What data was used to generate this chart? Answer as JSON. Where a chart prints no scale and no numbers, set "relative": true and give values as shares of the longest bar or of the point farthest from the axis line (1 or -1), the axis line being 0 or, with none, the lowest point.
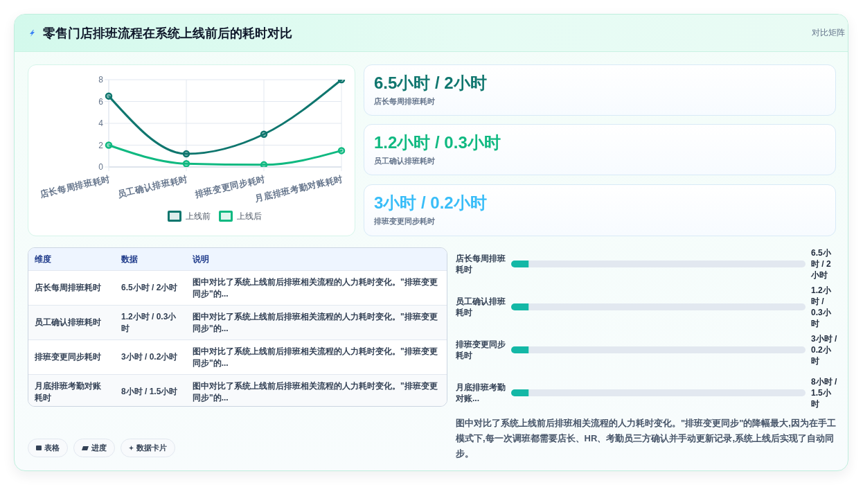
{
  "chart_data": [
    {
      "type": "other",
      "title": "零售门店排班流程在系统上线前后的耗时对比",
      "annotations": [
        "对比矩阵"
      ]
    },
    {
      "type": "line",
      "categories": [
        "店长每周排班耗时",
        "员工确认排班耗时",
        "排班变更同步耗时",
        "月底排班考勤对账耗时"
      ],
      "series": [
        {
          "name": "上线前",
          "color": "#0f766e",
          "values": [
            6.5,
            1.2,
            3,
            8
          ]
        },
        {
          "name": "上线后",
          "color": "#10b981",
          "values": [
            2,
            0.3,
            0.2,
            1.5
          ]
        }
      ],
      "ylim": [
        0,
        8
      ],
      "yticks": [
        0,
        2,
        4,
        6,
        8
      ],
      "grid": true,
      "legend": "bottom",
      "marker": "circle",
      "line_style": "solid"
    },
    {
      "type": "other",
      "title": "6.5小时 / 2小时",
      "subtitle": "店长每周排班耗时",
      "color": "#0f766e"
    },
    {
      "type": "other",
      "title": "1.2小时 / 0.3小时",
      "subtitle": "员工确认排班耗时",
      "color": "#10b981"
    },
    {
      "type": "other",
      "title": "3小时 / 0.2小时",
      "subtitle": "排班变更同步耗时",
      "color": "#38bdf8"
    },
    {
      "type": "other",
      "annotations": [
        "维度",
        "数据",
        "说明",
        "店长每周排班耗时",
        "6.5小时 / 2小时",
        "图中对比了系统上线前后排班相关流程的人力耗时变化。\"排班变更同步\"的...",
        "员工确认排班耗时",
        "1.2小时 / 0.3小时",
        "图中对比了系统上线前后排班相关流程的人力耗时变化。\"排班变更同步\"的...",
        "排班变更同步耗时",
        "3小时 / 0.2小时",
        "图中对比了系统上线前后排班相关流程的人力耗时变化。\"排班变更同步\"的...",
        "月底排班考勤对账耗时",
        "8小时 / 1.5小时",
        "图中对比了系统上线前后排班相关流程的人力耗时变化。\"排班变更同步\"的..."
      ]
    },
    {
      "type": "bar",
      "orientation": "horizontal",
      "relative": true,
      "stacked": true,
      "categories": [
        "店长每周排班耗时",
        "员工确认排班耗时",
        "排班变更同步耗时",
        "月底排班考勤对账..."
      ],
      "series": [
        {
          "color": "#14b8a6",
          "values": [
            0.06,
            0.06,
            0.06,
            0.06
          ]
        },
        {
          "color": "#e2e8f0",
          "values": [
            0.94,
            0.94,
            0.94,
            0.94
          ]
        }
      ],
      "annotations": [
        "6.5小时 / 2小时",
        "1.2小时 / 0.3小时",
        "3小时 / 0.2小时",
        "8小时 / 1.5小时",
        "图中对比了系统上线前后排班相关流程的人力耗时变化。\"排班变更同步\"的降幅最大,因为在手工模式下,每一次调班都需要店长、HR、考勤员三方确认并手动更新记录,系统上线后实现了自动同步。"
      ]
    },
    {
      "type": "other",
      "annotations": [
        "表格",
        "进度",
        "数据卡片"
      ]
    }
  ]
}
